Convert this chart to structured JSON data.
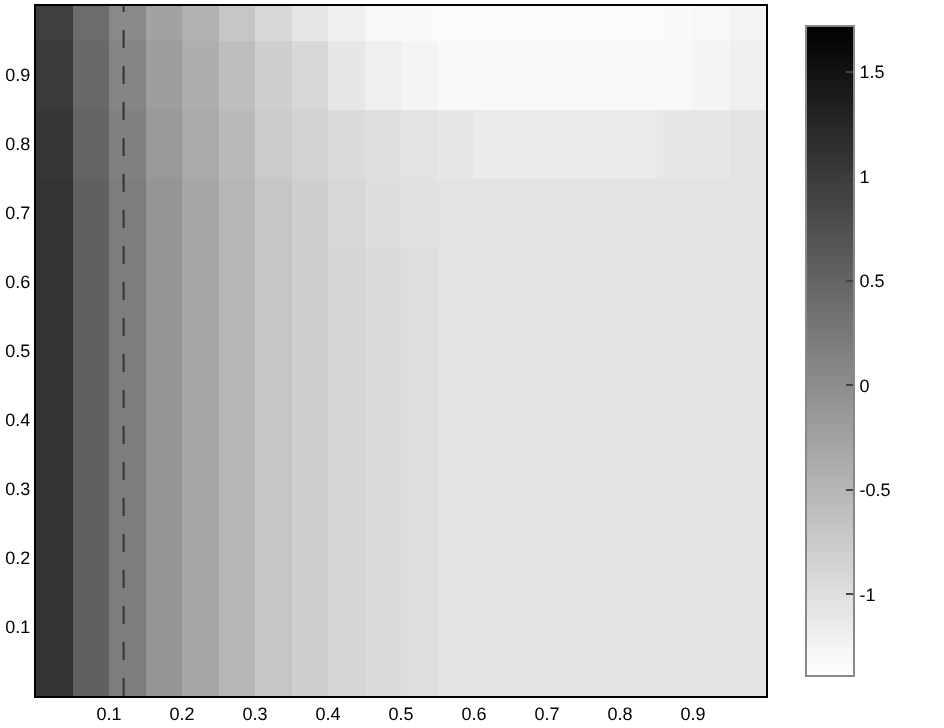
{
  "chart_data": {
    "type": "heatmap",
    "x": [
      0.025,
      0.075,
      0.125,
      0.175,
      0.225,
      0.275,
      0.325,
      0.375,
      0.425,
      0.475,
      0.525,
      0.575,
      0.625,
      0.675,
      0.725,
      0.775,
      0.825,
      0.875,
      0.925,
      0.975
    ],
    "y_categories": [
      null,
      "0.9",
      "0.8",
      "0.7",
      "0.6",
      "0.5",
      "0.4",
      "0.3",
      "0.2",
      "0.1",
      null
    ],
    "cells": [
      [
        0.95,
        0.4,
        0.05,
        -0.25,
        -0.45,
        -0.7,
        -0.9,
        -1.1,
        -1.2,
        -1.3,
        -1.33,
        -1.35,
        -1.35,
        -1.35,
        -1.35,
        -1.35,
        -1.35,
        -1.33,
        -1.3,
        -1.25
      ],
      [
        1.0,
        0.45,
        0.1,
        -0.2,
        -0.4,
        -0.6,
        -0.8,
        -0.9,
        -1.1,
        -1.2,
        -1.25,
        -1.3,
        -1.3,
        -1.3,
        -1.3,
        -1.3,
        -1.3,
        -1.3,
        -1.25,
        -1.2
      ],
      [
        1.05,
        0.5,
        0.15,
        -0.15,
        -0.35,
        -0.55,
        -0.75,
        -0.85,
        -0.95,
        -1.0,
        -1.05,
        -1.1,
        -1.15,
        -1.15,
        -1.15,
        -1.15,
        -1.15,
        -1.1,
        -1.1,
        -1.05
      ],
      [
        1.1,
        0.55,
        0.2,
        -0.1,
        -0.3,
        -0.5,
        -0.7,
        -0.8,
        -0.9,
        -0.97,
        -1.02,
        -1.05,
        -1.05,
        -1.05,
        -1.05,
        -1.05,
        -1.05,
        -1.05,
        -1.05,
        -1.05
      ],
      [
        1.1,
        0.55,
        0.2,
        -0.1,
        -0.3,
        -0.5,
        -0.7,
        -0.8,
        -0.88,
        -0.94,
        -0.99,
        -1.05,
        -1.05,
        -1.05,
        -1.05,
        -1.05,
        -1.05,
        -1.05,
        -1.05,
        -1.05
      ],
      [
        1.1,
        0.55,
        0.2,
        -0.1,
        -0.3,
        -0.5,
        -0.7,
        -0.8,
        -0.88,
        -0.94,
        -0.99,
        -1.05,
        -1.05,
        -1.05,
        -1.05,
        -1.05,
        -1.05,
        -1.05,
        -1.05,
        -1.05
      ],
      [
        1.1,
        0.55,
        0.2,
        -0.1,
        -0.3,
        -0.5,
        -0.7,
        -0.8,
        -0.88,
        -0.94,
        -0.99,
        -1.05,
        -1.05,
        -1.05,
        -1.05,
        -1.05,
        -1.05,
        -1.05,
        -1.05,
        -1.05
      ],
      [
        1.1,
        0.55,
        0.2,
        -0.1,
        -0.3,
        -0.5,
        -0.7,
        -0.8,
        -0.88,
        -0.94,
        -0.99,
        -1.05,
        -1.05,
        -1.05,
        -1.05,
        -1.05,
        -1.05,
        -1.05,
        -1.05,
        -1.05
      ],
      [
        1.1,
        0.55,
        0.2,
        -0.1,
        -0.3,
        -0.5,
        -0.7,
        -0.8,
        -0.88,
        -0.94,
        -0.99,
        -1.05,
        -1.05,
        -1.05,
        -1.05,
        -1.05,
        -1.05,
        -1.05,
        -1.05,
        -1.05
      ],
      [
        1.1,
        0.55,
        0.2,
        -0.1,
        -0.3,
        -0.5,
        -0.7,
        -0.8,
        -0.88,
        -0.94,
        -0.99,
        -1.05,
        -1.05,
        -1.05,
        -1.05,
        -1.05,
        -1.05,
        -1.05,
        -1.05,
        -1.05
      ],
      [
        1.1,
        0.55,
        0.2,
        -0.1,
        -0.3,
        -0.5,
        -0.7,
        -0.8,
        -0.88,
        -0.94,
        -0.99,
        -1.05,
        -1.05,
        -1.05,
        -1.05,
        -1.05,
        -1.05,
        -1.05,
        -1.05,
        -1.05
      ]
    ],
    "colors": [
      "#ffffff",
      "#000000"
    ],
    "clim": [
      -1.39,
      1.72
    ],
    "cticks": [
      -1,
      -0.5,
      0,
      0.5,
      1,
      1.5
    ],
    "ref_lines": [
      {
        "axis": "x",
        "value": 0.12,
        "color": "#333333",
        "line_style": "dashed"
      }
    ],
    "xlim": [
      0,
      1
    ],
    "xticks": [
      0.1,
      0.2,
      0.3,
      0.4,
      0.5,
      0.6,
      0.7,
      0.8,
      0.9
    ]
  }
}
